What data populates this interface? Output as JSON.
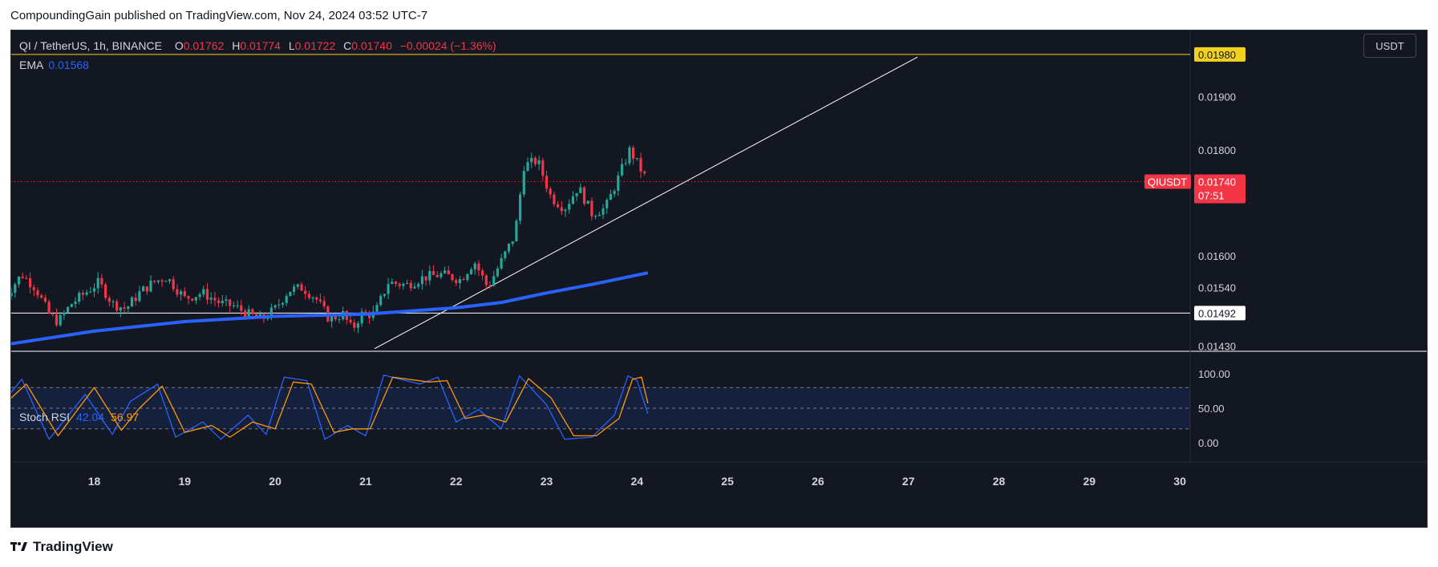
{
  "header": {
    "publish_line": "CompoundingGain published on TradingView.com, Nov 24, 2024 03:52 UTC-7"
  },
  "legend": {
    "symbol": "QI / TetherUS, 1h, BINANCE",
    "open_label": "O",
    "open": "0.01762",
    "high_label": "H",
    "high": "0.01774",
    "low_label": "L",
    "low": "0.01722",
    "close_label": "C",
    "close": "0.01740",
    "change": "−0.00024 (−1.36%)",
    "ema_label": "EMA",
    "ema_value": "0.01568"
  },
  "stoch_legend": {
    "label": "Stoch RSI",
    "k": "42.04",
    "d": "56.97"
  },
  "currency_button": "USDT",
  "footer": {
    "brand": "TradingView"
  },
  "colors": {
    "background": "#131722",
    "up": "#26a69a",
    "down": "#f23645",
    "ema": "#2962ff",
    "stoch_k": "#2962ff",
    "stoch_d": "#ff9800",
    "resistance": "#f0d21e",
    "support": "#ffffff",
    "last_price": "#f23645"
  },
  "chart_data": {
    "type": "candlestick",
    "symbol": "QIUSDT",
    "timeframe": "1h",
    "x_tick_labels": [
      "18",
      "19",
      "20",
      "21",
      "22",
      "23",
      "24",
      "25",
      "26",
      "27",
      "28",
      "29",
      "30"
    ],
    "price_axis": {
      "range": [
        0.0142,
        0.0201
      ],
      "tick_labels": [
        "0.01900",
        "0.01800",
        "0.01600",
        "0.01540",
        "0.01430"
      ],
      "tick_values": [
        0.019,
        0.018,
        0.016,
        0.0154,
        0.0143
      ]
    },
    "resistance_line": {
      "value": 0.0198,
      "label": "0.01980"
    },
    "support_line": {
      "value": 0.01492,
      "label": "0.01492"
    },
    "last_price": {
      "symbol_label": "QIUSDT",
      "value": 0.0174,
      "label": "0.01740",
      "countdown": "07:51"
    },
    "trendline": {
      "start": {
        "day": 21.1,
        "price": 0.01425
      },
      "end": {
        "day": 27.1,
        "price": 0.01975
      }
    },
    "ohlc_points": [
      {
        "day": 17.0,
        "close": 0.0152
      },
      {
        "day": 17.2,
        "close": 0.01565
      },
      {
        "day": 17.35,
        "close": 0.0154
      },
      {
        "day": 17.5,
        "close": 0.0149
      },
      {
        "day": 17.6,
        "close": 0.01475
      },
      {
        "day": 17.75,
        "close": 0.0151
      },
      {
        "day": 17.9,
        "close": 0.0153
      },
      {
        "day": 18.05,
        "close": 0.0155
      },
      {
        "day": 18.2,
        "close": 0.0151
      },
      {
        "day": 18.35,
        "close": 0.015
      },
      {
        "day": 18.5,
        "close": 0.0153
      },
      {
        "day": 18.65,
        "close": 0.0155
      },
      {
        "day": 18.8,
        "close": 0.0156
      },
      {
        "day": 19.0,
        "close": 0.0152
      },
      {
        "day": 19.2,
        "close": 0.0153
      },
      {
        "day": 19.4,
        "close": 0.0151
      },
      {
        "day": 19.55,
        "close": 0.01505
      },
      {
        "day": 19.7,
        "close": 0.0149
      },
      {
        "day": 19.85,
        "close": 0.0148
      },
      {
        "day": 20.0,
        "close": 0.015
      },
      {
        "day": 20.15,
        "close": 0.01535
      },
      {
        "day": 20.3,
        "close": 0.0154
      },
      {
        "day": 20.45,
        "close": 0.0152
      },
      {
        "day": 20.6,
        "close": 0.0148
      },
      {
        "day": 20.75,
        "close": 0.0149
      },
      {
        "day": 20.85,
        "close": 0.0146
      },
      {
        "day": 20.95,
        "close": 0.0149
      },
      {
        "day": 21.1,
        "close": 0.0149
      },
      {
        "day": 21.25,
        "close": 0.0155
      },
      {
        "day": 21.45,
        "close": 0.01545
      },
      {
        "day": 21.65,
        "close": 0.0156
      },
      {
        "day": 21.85,
        "close": 0.01565
      },
      {
        "day": 22.05,
        "close": 0.01555
      },
      {
        "day": 22.2,
        "close": 0.0159
      },
      {
        "day": 22.35,
        "close": 0.0154
      },
      {
        "day": 22.5,
        "close": 0.0159
      },
      {
        "day": 22.65,
        "close": 0.0164
      },
      {
        "day": 22.75,
        "close": 0.0177
      },
      {
        "day": 22.9,
        "close": 0.0178
      },
      {
        "day": 23.05,
        "close": 0.0171
      },
      {
        "day": 23.2,
        "close": 0.0169
      },
      {
        "day": 23.35,
        "close": 0.0173
      },
      {
        "day": 23.5,
        "close": 0.0168
      },
      {
        "day": 23.65,
        "close": 0.0169
      },
      {
        "day": 23.8,
        "close": 0.0175
      },
      {
        "day": 23.92,
        "close": 0.018
      },
      {
        "day": 24.05,
        "close": 0.0176
      },
      {
        "day": 24.12,
        "close": 0.0174
      }
    ],
    "ema": [
      {
        "day": 17.0,
        "value": 0.01432
      },
      {
        "day": 18.0,
        "value": 0.01458
      },
      {
        "day": 19.0,
        "value": 0.01476
      },
      {
        "day": 20.0,
        "value": 0.01486
      },
      {
        "day": 21.0,
        "value": 0.0149
      },
      {
        "day": 21.5,
        "value": 0.01496
      },
      {
        "day": 22.0,
        "value": 0.01502
      },
      {
        "day": 22.5,
        "value": 0.01512
      },
      {
        "day": 23.0,
        "value": 0.0153
      },
      {
        "day": 23.5,
        "value": 0.01546
      },
      {
        "day": 24.12,
        "value": 0.01568
      }
    ],
    "stoch_rsi": {
      "levels": [
        80,
        50,
        20
      ],
      "tick_labels": [
        "100.00",
        "50.00",
        "0.00"
      ],
      "tick_values": [
        100,
        50,
        0
      ],
      "k": [
        {
          "day": 17.0,
          "v": 60
        },
        {
          "day": 17.2,
          "v": 92
        },
        {
          "day": 17.5,
          "v": 5
        },
        {
          "day": 17.9,
          "v": 70
        },
        {
          "day": 18.2,
          "v": 12
        },
        {
          "day": 18.4,
          "v": 60
        },
        {
          "day": 18.7,
          "v": 85
        },
        {
          "day": 18.9,
          "v": 8
        },
        {
          "day": 19.2,
          "v": 30
        },
        {
          "day": 19.4,
          "v": 5
        },
        {
          "day": 19.7,
          "v": 40
        },
        {
          "day": 19.9,
          "v": 12
        },
        {
          "day": 20.1,
          "v": 95
        },
        {
          "day": 20.35,
          "v": 90
        },
        {
          "day": 20.55,
          "v": 5
        },
        {
          "day": 20.8,
          "v": 25
        },
        {
          "day": 21.0,
          "v": 10
        },
        {
          "day": 21.2,
          "v": 98
        },
        {
          "day": 21.6,
          "v": 85
        },
        {
          "day": 21.8,
          "v": 95
        },
        {
          "day": 22.0,
          "v": 30
        },
        {
          "day": 22.25,
          "v": 48
        },
        {
          "day": 22.5,
          "v": 20
        },
        {
          "day": 22.7,
          "v": 97
        },
        {
          "day": 23.0,
          "v": 55
        },
        {
          "day": 23.2,
          "v": 5
        },
        {
          "day": 23.5,
          "v": 8
        },
        {
          "day": 23.75,
          "v": 40
        },
        {
          "day": 23.9,
          "v": 97
        },
        {
          "day": 24.0,
          "v": 90
        },
        {
          "day": 24.12,
          "v": 42.04
        }
      ],
      "d": [
        {
          "day": 17.0,
          "v": 55
        },
        {
          "day": 17.25,
          "v": 85
        },
        {
          "day": 17.6,
          "v": 10
        },
        {
          "day": 18.0,
          "v": 80
        },
        {
          "day": 18.3,
          "v": 18
        },
        {
          "day": 18.5,
          "v": 50
        },
        {
          "day": 18.75,
          "v": 82
        },
        {
          "day": 19.0,
          "v": 15
        },
        {
          "day": 19.3,
          "v": 25
        },
        {
          "day": 19.5,
          "v": 8
        },
        {
          "day": 19.75,
          "v": 30
        },
        {
          "day": 20.0,
          "v": 20
        },
        {
          "day": 20.2,
          "v": 88
        },
        {
          "day": 20.4,
          "v": 85
        },
        {
          "day": 20.65,
          "v": 15
        },
        {
          "day": 20.85,
          "v": 20
        },
        {
          "day": 21.05,
          "v": 20
        },
        {
          "day": 21.3,
          "v": 95
        },
        {
          "day": 21.7,
          "v": 88
        },
        {
          "day": 21.9,
          "v": 90
        },
        {
          "day": 22.1,
          "v": 35
        },
        {
          "day": 22.3,
          "v": 40
        },
        {
          "day": 22.55,
          "v": 30
        },
        {
          "day": 22.8,
          "v": 93
        },
        {
          "day": 23.05,
          "v": 65
        },
        {
          "day": 23.3,
          "v": 10
        },
        {
          "day": 23.55,
          "v": 10
        },
        {
          "day": 23.8,
          "v": 35
        },
        {
          "day": 23.95,
          "v": 92
        },
        {
          "day": 24.05,
          "v": 95
        },
        {
          "day": 24.12,
          "v": 56.97
        }
      ]
    }
  }
}
